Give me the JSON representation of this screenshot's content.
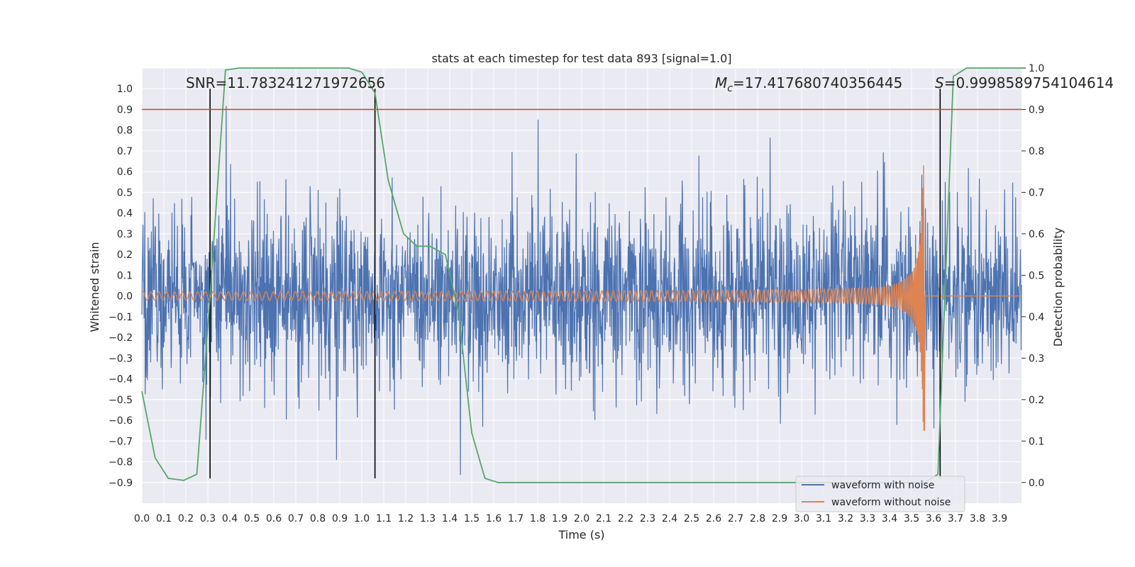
{
  "chart_data": {
    "type": "line",
    "title": "stats at each timestep for test data 893 [signal=1.0]",
    "xlabel": "Time (s)",
    "ylabel": "Whitened strain",
    "y2label": "Detection probability",
    "xlim": [
      0.0,
      4.0
    ],
    "ylim": [
      -1.0,
      1.1
    ],
    "y2lim": [
      -0.05,
      1.0
    ],
    "x_ticks": [
      0.0,
      0.1,
      0.2,
      0.3,
      0.4,
      0.5,
      0.6,
      0.7,
      0.8,
      0.9,
      1.0,
      1.1,
      1.2,
      1.3,
      1.4,
      1.5,
      1.6,
      1.7,
      1.8,
      1.9,
      2.0,
      2.1,
      2.2,
      2.3,
      2.4,
      2.5,
      2.6,
      2.7,
      2.8,
      2.9,
      3.0,
      3.1,
      3.2,
      3.3,
      3.4,
      3.5,
      3.6,
      3.7,
      3.8,
      3.9
    ],
    "x_tick_labels": [
      "0.0",
      "0.1",
      "0.2",
      "0.3",
      "0.4",
      "0.5",
      "0.6",
      "0.7",
      "0.8",
      "0.9",
      "1.0",
      "1.1",
      "1.2",
      "1.3",
      "1.4",
      "1.5",
      "1.6",
      "1.7",
      "1.8",
      "1.9",
      "2.0",
      "2.1",
      "2.2",
      "2.3",
      "2.4",
      "2.5",
      "2.6",
      "2.7",
      "2.8",
      "2.9",
      "3.0",
      "3.1",
      "3.2",
      "3.3",
      "3.4",
      "3.5",
      "3.6",
      "3.7",
      "3.8",
      "3.9"
    ],
    "y_ticks": [
      1.0,
      0.9,
      0.8,
      0.7,
      0.6,
      0.5,
      0.4,
      0.3,
      0.2,
      0.1,
      0.0,
      -0.1,
      -0.2,
      -0.3,
      -0.4,
      -0.5,
      -0.6,
      -0.7,
      -0.8,
      -0.9
    ],
    "y_tick_labels": [
      "1.0",
      "0.9",
      "0.8",
      "0.7",
      "0.6",
      "0.5",
      "0.4",
      "0.3",
      "0.2",
      "0.1",
      "0.0",
      "−0.1",
      "−0.2",
      "−0.3",
      "−0.4",
      "−0.5",
      "−0.6",
      "−0.7",
      "−0.8",
      "−0.9"
    ],
    "y2_ticks": [
      1.0,
      0.9,
      0.8,
      0.7,
      0.6,
      0.5,
      0.4,
      0.3,
      0.2,
      0.1,
      0.0
    ],
    "y2_tick_labels": [
      "1.0",
      "0.9",
      "0.8",
      "0.7",
      "0.6",
      "0.5",
      "0.4",
      "0.3",
      "0.2",
      "0.1",
      "0.0"
    ],
    "grid": true,
    "legend_position": "bottom-right",
    "annotations": {
      "snr": "SNR=11.783241271972656",
      "mc_symbol": "M",
      "mc_sub": "c",
      "mc_value": "=17.417680740356445",
      "s_symbol": "S",
      "s_value": "=0.9998589754104614"
    },
    "threshold_y2": 0.9,
    "vertical_markers_x": [
      0.31,
      1.06,
      3.63
    ],
    "series": [
      {
        "name": "waveform with noise",
        "color": "#4c72b0",
        "noise_amplitude": 0.45,
        "peak_min": -0.87,
        "peak_max": 1.0
      },
      {
        "name": "waveform without noise",
        "color": "#dd8452",
        "chirp_start_amplitude": 0.02,
        "chirp_end_x": 3.56,
        "chirp_peak_amplitude": 0.65
      },
      {
        "color": "#55a868",
        "axis": "y2",
        "x": [
          0.0,
          0.06,
          0.12,
          0.19,
          0.25,
          0.31,
          0.38,
          0.44,
          0.5,
          0.56,
          0.62,
          0.69,
          0.75,
          0.81,
          0.88,
          0.94,
          1.0,
          1.06,
          1.12,
          1.19,
          1.25,
          1.31,
          1.38,
          1.44,
          1.5,
          1.56,
          1.62,
          1.69,
          1.75,
          1.81,
          1.88,
          1.94,
          2.0,
          2.06,
          2.12,
          2.19,
          2.25,
          2.31,
          2.38,
          2.44,
          2.5,
          2.56,
          2.62,
          2.69,
          2.75,
          2.81,
          2.88,
          2.94,
          3.0,
          3.06,
          3.12,
          3.19,
          3.25,
          3.31,
          3.38,
          3.44,
          3.5,
          3.56,
          3.62,
          3.69,
          3.75,
          3.81,
          3.88,
          3.94,
          4.0
        ],
        "values": [
          0.22,
          0.06,
          0.01,
          0.005,
          0.02,
          0.45,
          0.995,
          1.0,
          1.0,
          1.0,
          1.0,
          1.0,
          1.0,
          1.0,
          1.0,
          1.0,
          0.99,
          0.94,
          0.73,
          0.6,
          0.57,
          0.57,
          0.55,
          0.41,
          0.12,
          0.01,
          0.0,
          0.0,
          0.0,
          0.0,
          0.0,
          0.0,
          0.0,
          0.0,
          0.0,
          0.0,
          0.0,
          0.0,
          0.0,
          0.0,
          0.0,
          0.0,
          0.0,
          0.0,
          0.0,
          0.0,
          0.0,
          0.0,
          0.0,
          0.0,
          0.0,
          0.0,
          0.0,
          0.0,
          0.0,
          0.0,
          0.0,
          0.0,
          0.02,
          0.98,
          1.0,
          1.0,
          1.0,
          1.0,
          1.0
        ]
      }
    ]
  }
}
